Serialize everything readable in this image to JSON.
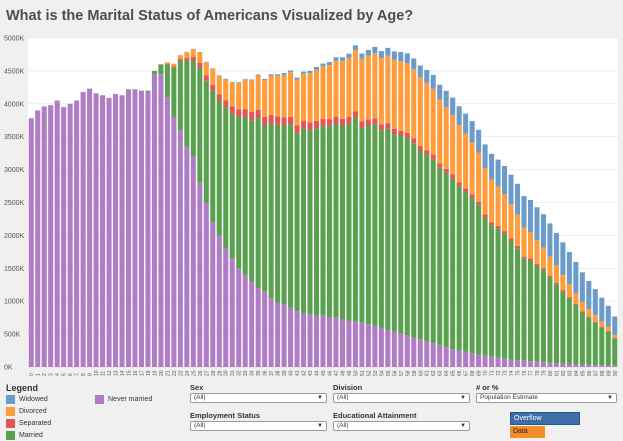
{
  "title": "What is the Marital Status of Americans Visualized by Age?",
  "chart_data": {
    "type": "bar",
    "stacked": true,
    "y_tick_labels": [
      "0K",
      "500K",
      "1000K",
      "1500K",
      "2000K",
      "2500K",
      "3000K",
      "3500K",
      "4000K",
      "4500K",
      "5000K"
    ],
    "ylim": [
      0,
      5000
    ],
    "grid": true,
    "categories": [
      "0",
      "1",
      "2",
      "3",
      "4",
      "5",
      "6",
      "7",
      "8",
      "9",
      "10",
      "11",
      "12",
      "13",
      "14",
      "15",
      "16",
      "17",
      "18",
      "19",
      "20",
      "21",
      "22",
      "23",
      "24",
      "25",
      "26",
      "27",
      "28",
      "29",
      "30",
      "31",
      "32",
      "33",
      "34",
      "35",
      "36",
      "37",
      "38",
      "39",
      "40",
      "41",
      "42",
      "43",
      "44",
      "45",
      "46",
      "47",
      "48",
      "49",
      "50",
      "51",
      "52",
      "53",
      "54",
      "55",
      "56",
      "57",
      "58",
      "59",
      "60",
      "61",
      "62",
      "63",
      "64",
      "65",
      "66",
      "67",
      "68",
      "69",
      "70",
      "71",
      "72",
      "73",
      "74",
      "75",
      "76",
      "77",
      "78",
      "79",
      "80",
      "81",
      "82",
      "83",
      "84",
      "85",
      "86",
      "87",
      "88",
      "89",
      "90"
    ],
    "series": [
      {
        "name": "Never married",
        "color": "#b07cc6",
        "values": [
          3780,
          3900,
          3960,
          3980,
          4050,
          3950,
          4000,
          4050,
          4180,
          4230,
          4160,
          4130,
          4090,
          4150,
          4130,
          4220,
          4220,
          4200,
          4180,
          4450,
          4450,
          4100,
          3800,
          3600,
          3350,
          3200,
          2800,
          2500,
          2200,
          2000,
          1800,
          1650,
          1500,
          1400,
          1300,
          1200,
          1150,
          1050,
          980,
          950,
          900,
          850,
          820,
          800,
          780,
          780,
          760,
          750,
          720,
          700,
          690,
          680,
          650,
          630,
          600,
          570,
          540,
          510,
          480,
          450,
          420,
          390,
          360,
          330,
          300,
          270,
          250,
          230,
          210,
          190,
          170,
          155,
          140,
          125,
          115,
          105,
          95,
          88,
          80,
          72,
          65,
          58,
          52,
          47,
          42,
          37,
          33,
          29,
          25,
          22,
          18
        ]
      },
      {
        "name": "Married",
        "color": "#59a14f",
        "values": [
          0,
          0,
          0,
          0,
          0,
          0,
          0,
          0,
          0,
          0,
          0,
          0,
          0,
          0,
          0,
          0,
          0,
          0,
          20,
          50,
          150,
          500,
          750,
          1050,
          1300,
          1450,
          1750,
          1850,
          2000,
          2050,
          2150,
          2200,
          2300,
          2400,
          2450,
          2580,
          2520,
          2650,
          2700,
          2720,
          2780,
          2700,
          2800,
          2800,
          2850,
          2880,
          2900,
          2950,
          2950,
          3000,
          3100,
          2960,
          3020,
          3060,
          3000,
          3050,
          3000,
          3000,
          3000,
          2950,
          2870,
          2830,
          2800,
          2700,
          2650,
          2600,
          2500,
          2430,
          2360,
          2270,
          2100,
          2000,
          1960,
          1900,
          1800,
          1700,
          1550,
          1530,
          1460,
          1400,
          1300,
          1200,
          1100,
          1000,
          900,
          800,
          720,
          650,
          580,
          520,
          420
        ]
      },
      {
        "name": "Separated",
        "color": "#e15759",
        "values": [
          0,
          0,
          0,
          0,
          0,
          0,
          0,
          0,
          0,
          0,
          0,
          0,
          0,
          0,
          0,
          0,
          0,
          0,
          0,
          0,
          0,
          10,
          20,
          30,
          45,
          60,
          70,
          80,
          90,
          95,
          100,
          110,
          115,
          120,
          125,
          130,
          130,
          130,
          128,
          125,
          122,
          120,
          118,
          115,
          112,
          110,
          108,
          105,
          102,
          100,
          98,
          95,
          92,
          90,
          88,
          85,
          82,
          80,
          78,
          75,
          72,
          70,
          68,
          65,
          62,
          60,
          58,
          55,
          52,
          50,
          48,
          45,
          42,
          40,
          38,
          35,
          32,
          30,
          28,
          25,
          22,
          20,
          18,
          16,
          14,
          12,
          10,
          9,
          8,
          7,
          6
        ]
      },
      {
        "name": "Divorced",
        "color": "#ff9d3c",
        "values": [
          0,
          0,
          0,
          0,
          0,
          0,
          0,
          0,
          0,
          0,
          0,
          0,
          0,
          0,
          0,
          0,
          0,
          0,
          0,
          0,
          0,
          20,
          40,
          60,
          90,
          120,
          160,
          200,
          240,
          280,
          320,
          360,
          400,
          440,
          480,
          520,
          560,
          600,
          620,
          650,
          680,
          700,
          720,
          750,
          780,
          800,
          820,
          850,
          880,
          900,
          930,
          950,
          970,
          990,
          1010,
          1030,
          1050,
          1060,
          1060,
          1050,
          1040,
          1030,
          1000,
          970,
          940,
          900,
          870,
          830,
          790,
          750,
          700,
          650,
          600,
          560,
          520,
          480,
          440,
          400,
          360,
          320,
          290,
          260,
          230,
          200,
          170,
          140,
          120,
          100,
          80,
          60,
          45
        ]
      },
      {
        "name": "Widowed",
        "color": "#6a9bcb",
        "values": [
          0,
          0,
          0,
          0,
          0,
          0,
          0,
          0,
          0,
          0,
          0,
          0,
          0,
          0,
          0,
          0,
          0,
          0,
          0,
          0,
          0,
          0,
          0,
          0,
          5,
          5,
          6,
          7,
          8,
          9,
          10,
          11,
          12,
          13,
          14,
          15,
          17,
          19,
          21,
          23,
          25,
          28,
          31,
          34,
          38,
          42,
          46,
          51,
          56,
          62,
          70,
          78,
          86,
          95,
          105,
          115,
          125,
          138,
          150,
          165,
          180,
          195,
          210,
          225,
          245,
          265,
          285,
          305,
          325,
          345,
          365,
          390,
          410,
          430,
          450,
          465,
          480,
          490,
          500,
          505,
          505,
          500,
          495,
          485,
          470,
          450,
          425,
          395,
          360,
          320,
          280
        ]
      }
    ]
  },
  "legend": {
    "title": "Legend",
    "items": [
      {
        "label": "Widowed",
        "color": "#6a9bcb"
      },
      {
        "label": "Divorced",
        "color": "#ff9d3c"
      },
      {
        "label": "Separated",
        "color": "#e15759"
      },
      {
        "label": "Married",
        "color": "#59a14f"
      },
      {
        "label": "Never married",
        "color": "#b07cc6"
      }
    ]
  },
  "filters": {
    "sex": {
      "label": "Sex",
      "value": "(All)"
    },
    "division": {
      "label": "Division",
      "value": "(All)"
    },
    "measure": {
      "label": "# or %",
      "value": "Population Estimate"
    },
    "employment": {
      "label": "Employment Status",
      "value": "(All)"
    },
    "education": {
      "label": "Educational Attainment",
      "value": "(All)"
    }
  },
  "overflow_box": {
    "overflow": "Overflow",
    "data": "Data"
  }
}
